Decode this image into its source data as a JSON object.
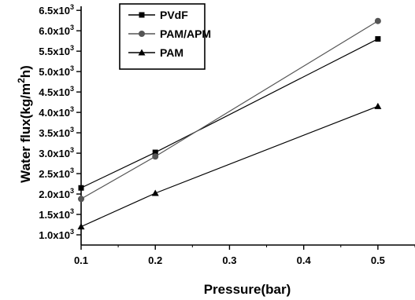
{
  "chart_data": {
    "type": "line",
    "xlabel": "Pressure(bar)",
    "ylabel_main": "Water flux(kg/m",
    "ylabel_sup": "2",
    "ylabel_end": "h)",
    "xlim": [
      0.1,
      0.55
    ],
    "ylim": [
      0.75,
      6.6
    ],
    "x_ticks": [
      0.1,
      0.2,
      0.3,
      0.4,
      0.5
    ],
    "x_tick_labels": [
      "0.1",
      "0.2",
      "0.3",
      "0.4",
      "0.5"
    ],
    "y_ticks": [
      1.0,
      1.5,
      2.0,
      2.5,
      3.0,
      3.5,
      4.0,
      4.5,
      5.0,
      5.5,
      6.0,
      6.5
    ],
    "y_tick_labels": [
      "1.0x10",
      "1.5x10",
      "2.0x10",
      "2.5x10",
      "3.0x10",
      "3.5x10",
      "4.0x10",
      "4.5x10",
      "5.0x10",
      "5.5x10",
      "6.0x10",
      "6.5x10"
    ],
    "y_tick_exponent": "3",
    "legend_position": "top-left",
    "grid": false,
    "series": [
      {
        "name": "PVdF",
        "marker": "square",
        "color": "#000000",
        "x": [
          0.1,
          0.2,
          0.5
        ],
        "y": [
          2150,
          3020,
          5800
        ]
      },
      {
        "name": "PAM/APM",
        "marker": "circle",
        "color": "#555555",
        "x": [
          0.1,
          0.2,
          0.5
        ],
        "y": [
          1880,
          2920,
          6240
        ]
      },
      {
        "name": "PAM",
        "marker": "triangle",
        "color": "#000000",
        "x": [
          0.1,
          0.2,
          0.5
        ],
        "y": [
          1200,
          2020,
          4150
        ]
      }
    ]
  }
}
